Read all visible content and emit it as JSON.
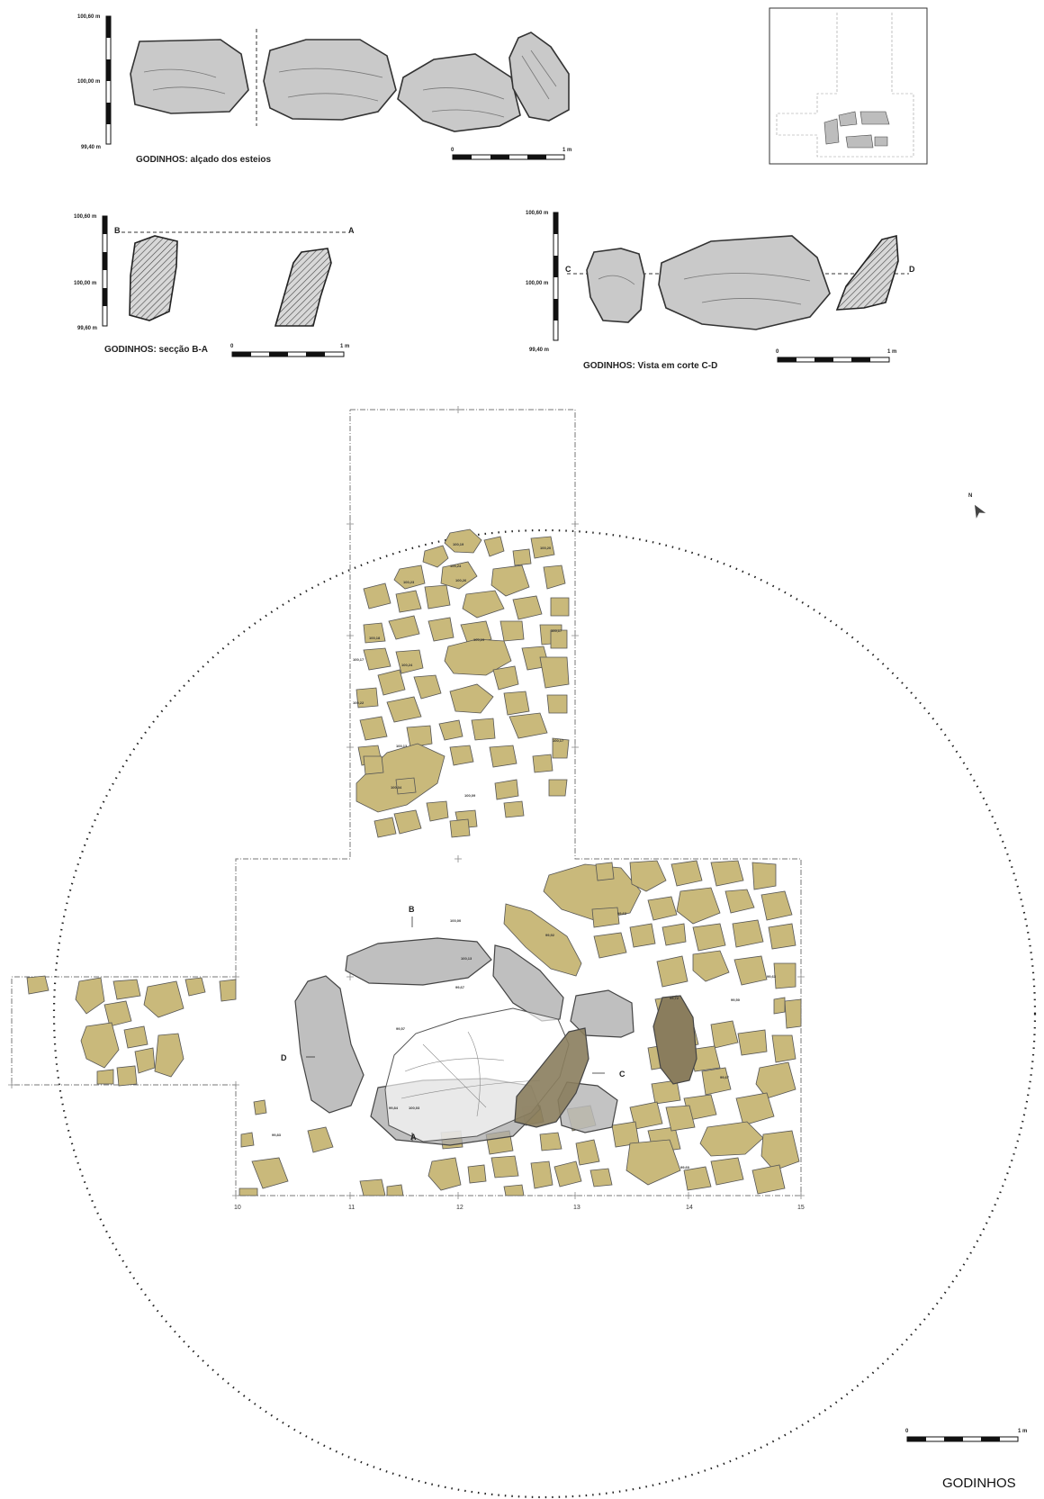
{
  "elevation_view": {
    "caption": "GODINHOS: alçado dos esteios",
    "scale_ticks": [
      "100,60 m",
      "100,00 m",
      "99,40 m"
    ],
    "scalebar": {
      "start": "0",
      "end": "1 m"
    }
  },
  "section_ba": {
    "caption": "GODINHOS: secção B-A",
    "scale_ticks": [
      "100,60 m",
      "100,00 m",
      "99,60 m"
    ],
    "label_left": "B",
    "label_right": "A",
    "scalebar": {
      "start": "0",
      "end": "1 m"
    }
  },
  "section_cd": {
    "caption": "GODINHOS: Vista em corte C-D",
    "scale_ticks": [
      "100,60 m",
      "100,00 m",
      "99,40 m"
    ],
    "label_left": "C",
    "label_right": "D",
    "scalebar": {
      "start": "0",
      "end": "1 m"
    }
  },
  "plan": {
    "section_labels": {
      "a": "A",
      "b": "B",
      "c": "C",
      "d": "D"
    },
    "grid_labels": [
      "10",
      "11",
      "12",
      "13",
      "14",
      "15"
    ],
    "north": "N",
    "elevations": [
      {
        "id": "e1",
        "text": "100,19"
      },
      {
        "id": "e2",
        "text": "100,20"
      },
      {
        "id": "e3",
        "text": "100,24"
      },
      {
        "id": "e4",
        "text": "100,26"
      },
      {
        "id": "e5",
        "text": "100,23"
      },
      {
        "id": "e6",
        "text": "100,17"
      },
      {
        "id": "e7",
        "text": "100,29"
      },
      {
        "id": "e8",
        "text": "100,18"
      },
      {
        "id": "e9",
        "text": "100,24"
      },
      {
        "id": "e10",
        "text": "100,17"
      },
      {
        "id": "e11",
        "text": "100,22"
      },
      {
        "id": "e12",
        "text": "100,13"
      },
      {
        "id": "e13",
        "text": "100,34"
      },
      {
        "id": "e14",
        "text": "100,09"
      },
      {
        "id": "e15",
        "text": "100,17"
      },
      {
        "id": "e16",
        "text": "100,00"
      },
      {
        "id": "e17",
        "text": "100,13"
      },
      {
        "id": "e18",
        "text": "99,67"
      },
      {
        "id": "e19",
        "text": "99,57"
      },
      {
        "id": "e20",
        "text": "99,92"
      },
      {
        "id": "e21",
        "text": "99,63"
      },
      {
        "id": "e22",
        "text": "99,72"
      },
      {
        "id": "e23",
        "text": "99,50"
      },
      {
        "id": "e24",
        "text": "99,63"
      },
      {
        "id": "e25",
        "text": "99,67"
      },
      {
        "id": "e26",
        "text": "99,60"
      },
      {
        "id": "e27",
        "text": "99,84"
      },
      {
        "id": "e28",
        "text": "100,03"
      },
      {
        "id": "e29",
        "text": "99,83"
      }
    ]
  },
  "scalebar_main": {
    "start": "0",
    "end": "1 m"
  },
  "site_title": "GODINHOS"
}
